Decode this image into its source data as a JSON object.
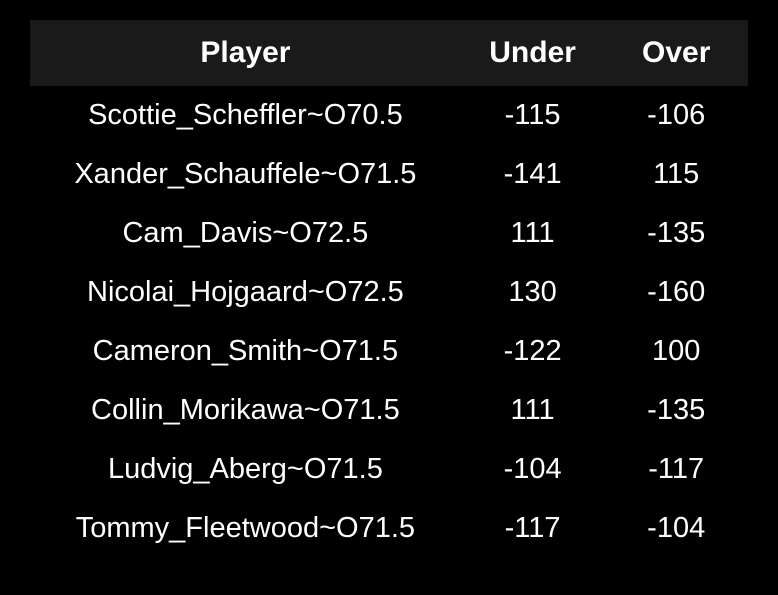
{
  "odds_table": {
    "type": "table",
    "background_color": "#000000",
    "header_background_color": "#1a1a1a",
    "text_color": "#ffffff",
    "header_fontsize": 30,
    "cell_fontsize": 29,
    "header_fontweight": 700,
    "cell_fontweight": 400,
    "columns": [
      {
        "key": "player",
        "label": "Player",
        "width_pct": 60,
        "align": "center"
      },
      {
        "key": "under",
        "label": "Under",
        "width_pct": 20,
        "align": "center"
      },
      {
        "key": "over",
        "label": "Over",
        "width_pct": 20,
        "align": "center"
      }
    ],
    "rows": [
      {
        "player": "Scottie_Scheffler~O70.5",
        "under": "-115",
        "over": "-106"
      },
      {
        "player": "Xander_Schauffele~O71.5",
        "under": "-141",
        "over": "115"
      },
      {
        "player": "Cam_Davis~O72.5",
        "under": "111",
        "over": "-135"
      },
      {
        "player": "Nicolai_Hojgaard~O72.5",
        "under": "130",
        "over": "-160"
      },
      {
        "player": "Cameron_Smith~O71.5",
        "under": "-122",
        "over": "100"
      },
      {
        "player": "Collin_Morikawa~O71.5",
        "under": "111",
        "over": "-135"
      },
      {
        "player": "Ludvig_Aberg~O71.5",
        "under": "-104",
        "over": "-117"
      },
      {
        "player": "Tommy_Fleetwood~O71.5",
        "under": "-117",
        "over": "-104"
      }
    ]
  }
}
